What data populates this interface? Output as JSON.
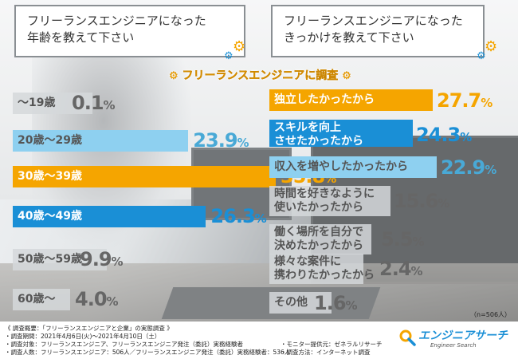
{
  "questions": {
    "left": [
      "フリーランスエンジニアになった",
      "年齢を教えて下さい"
    ],
    "right": [
      "フリーランスエンジニアになった",
      "きっかけを教えて下さい"
    ]
  },
  "survey_title": "フリーランスエンジニアに調査",
  "sample_note": "（n=506人）",
  "colors": {
    "orange": "#f5a500",
    "blue": "#1a8fd6",
    "light_blue": "#8ed0f0",
    "gray": "#d5d8db",
    "brand": "#1a8fd6"
  },
  "chart_data": [
    {
      "type": "bar",
      "orientation": "horizontal",
      "categories": [
        "～19歳",
        "20歳～29歳",
        "30歳～39歳",
        "40歳～49歳",
        "50歳～59歳",
        "60歳～"
      ],
      "values": [
        0.1,
        23.9,
        35.8,
        26.3,
        9.9,
        4.0
      ],
      "value_labels": [
        "0.1",
        "23.9",
        "35.8",
        "26.3",
        "9.9",
        "4.0"
      ],
      "unit": "%",
      "bar_colors": [
        "#d5d8db",
        "#8ed0f0",
        "#f5a500",
        "#1a8fd6",
        "#d5d8db",
        "#d5d8db"
      ]
    },
    {
      "type": "bar",
      "orientation": "horizontal",
      "categories": [
        [
          "独立したかったから"
        ],
        [
          "スキルを向上",
          "させたかったから"
        ],
        [
          "収入を増やしたかったから"
        ],
        [
          "時間を好きなように",
          "使いたかったから"
        ],
        [
          "働く場所を自分で",
          "決めたかったから"
        ],
        [
          "様々な案件に",
          "携わりたかったから"
        ],
        [
          "その他"
        ]
      ],
      "values": [
        27.7,
        24.3,
        22.9,
        15.6,
        5.5,
        2.4,
        1.6
      ],
      "value_labels": [
        "27.7",
        "24.3",
        "22.9",
        "15.6",
        "5.5",
        "2.4",
        "1.6"
      ],
      "unit": "%",
      "bar_colors": [
        "#f5a500",
        "#1a8fd6",
        "#8ed0f0",
        "#d5d8db",
        "#d5d8db",
        "#d5d8db",
        "#d5d8db"
      ]
    }
  ],
  "footnotes": {
    "col1": [
      "《 調査概要：「フリーランスエンジニアと企業」の実態調査 》",
      "・調査期間：2021年4月6日(火)～2021年4月10日（土）",
      "・調査対象：フリーランスエンジニア、フリーランスエンジニア発注（委託）実務経験者",
      "・調査人数：フリーランスエンジニア：506人／フリーランスエンジニア発注（委託）実務経験者：536人"
    ],
    "col2": [
      "・モニター提供元：ゼネラルリサーチ",
      "・調査方法：インターネット調査"
    ]
  },
  "logo": {
    "name": "エンジニアサーチ",
    "sub": "Engineer Search"
  }
}
